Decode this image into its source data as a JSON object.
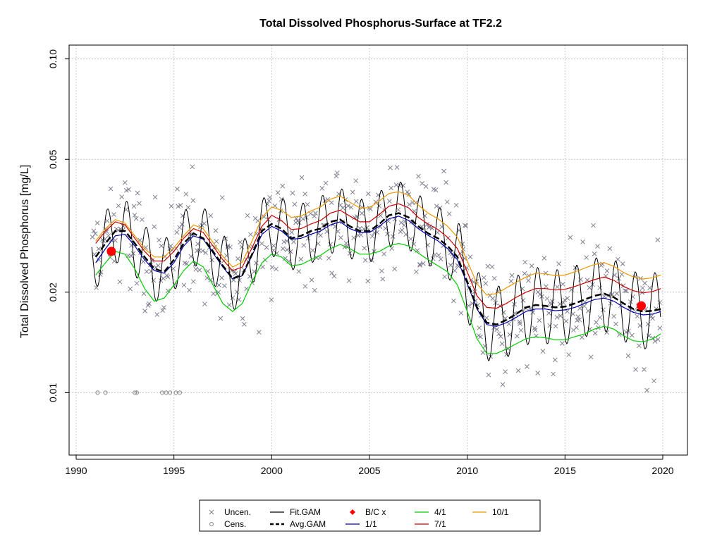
{
  "chart_data": {
    "type": "scatter",
    "title": "Total Dissolved Phosphorus-Surface at TF2.2",
    "xlabel": "",
    "ylabel": "Total Dissolved Phosphorus [mg/L]",
    "y_scale": "log",
    "xlim": [
      1990,
      2020
    ],
    "ylim": [
      0.0065,
      0.11
    ],
    "x_ticks": [
      1990,
      1995,
      2000,
      2005,
      2010,
      2015,
      2020
    ],
    "x_tick_labels": [
      "1990",
      "1995",
      "2000",
      "2005",
      "2010",
      "2015",
      "2020"
    ],
    "y_ticks": [
      0.01,
      0.02,
      0.05,
      0.1
    ],
    "y_tick_labels": [
      "0.01",
      "0.02",
      "0.05",
      "0.10"
    ],
    "grid": true,
    "legend_position": "bottom",
    "legend": [
      {
        "label": "Uncen.",
        "kind": "point",
        "symbol": "x",
        "color": "#7f7f7f"
      },
      {
        "label": "Cens.",
        "kind": "point",
        "symbol": "o",
        "color": "#7f7f7f"
      },
      {
        "label": "Fit.GAM",
        "kind": "line",
        "color": "#000000"
      },
      {
        "label": "Avg.GAM",
        "kind": "dashed",
        "color": "#000000"
      },
      {
        "label": "B/C x",
        "kind": "point",
        "symbol": "dot",
        "color": "#ff0000"
      },
      {
        "label": "1/1",
        "kind": "line",
        "color": "#0000aa"
      },
      {
        "label": "4/1",
        "kind": "line",
        "color": "#00cc00"
      },
      {
        "label": "7/1",
        "kind": "line",
        "color": "#cc0000"
      },
      {
        "label": "10/1",
        "kind": "line",
        "color": "#ee9900"
      }
    ],
    "series": [
      {
        "name": "Avg.GAM",
        "color": "#000000",
        "x": [
          1991.0,
          1991.5,
          1992.0,
          1992.5,
          1993.0,
          1993.5,
          1994.0,
          1994.5,
          1995.0,
          1995.5,
          1996.0,
          1996.5,
          1997.0,
          1997.5,
          1998.0,
          1998.5,
          1999.0,
          1999.5,
          2000.0,
          2000.5,
          2001.0,
          2001.5,
          2002.0,
          2002.5,
          2003.0,
          2003.5,
          2004.0,
          2004.5,
          2005.0,
          2005.5,
          2006.0,
          2006.5,
          2007.0,
          2007.5,
          2008.0,
          2008.5,
          2009.0,
          2009.5,
          2010.0,
          2010.5,
          2011.0,
          2011.5,
          2012.0,
          2012.5,
          2013.0,
          2013.5,
          2014.0,
          2014.5,
          2015.0,
          2015.5,
          2016.0,
          2016.5,
          2017.0,
          2017.5,
          2018.0,
          2018.5,
          2019.0,
          2019.5,
          2019.9
        ],
        "y": [
          0.0255,
          0.028,
          0.0305,
          0.0305,
          0.028,
          0.0255,
          0.0235,
          0.023,
          0.025,
          0.028,
          0.03,
          0.029,
          0.0265,
          0.024,
          0.022,
          0.0225,
          0.026,
          0.0305,
          0.032,
          0.031,
          0.029,
          0.0295,
          0.0305,
          0.031,
          0.0325,
          0.033,
          0.0315,
          0.0305,
          0.0305,
          0.032,
          0.034,
          0.0345,
          0.0335,
          0.0315,
          0.03,
          0.029,
          0.0275,
          0.0255,
          0.0215,
          0.018,
          0.0162,
          0.016,
          0.0165,
          0.0172,
          0.018,
          0.0183,
          0.0182,
          0.018,
          0.0181,
          0.0185,
          0.019,
          0.0195,
          0.0198,
          0.0193,
          0.0185,
          0.0178,
          0.0175,
          0.0176,
          0.0178
        ]
      },
      {
        "name": "1/1",
        "color": "#0000aa",
        "x": [
          1991.0,
          1991.5,
          1992.0,
          1992.5,
          1993.0,
          1993.5,
          1994.0,
          1994.5,
          1995.0,
          1995.5,
          1996.0,
          1996.5,
          1997.0,
          1997.5,
          1998.0,
          1998.5,
          1999.0,
          1999.5,
          2000.0,
          2000.5,
          2001.0,
          2001.5,
          2002.0,
          2002.5,
          2003.0,
          2003.5,
          2004.0,
          2004.5,
          2005.0,
          2005.5,
          2006.0,
          2006.5,
          2007.0,
          2007.5,
          2008.0,
          2008.5,
          2009.0,
          2009.5,
          2010.0,
          2010.5,
          2011.0,
          2011.5,
          2012.0,
          2012.5,
          2013.0,
          2013.5,
          2014.0,
          2014.5,
          2015.0,
          2015.5,
          2016.0,
          2016.5,
          2017.0,
          2017.5,
          2018.0,
          2018.5,
          2019.0,
          2019.5,
          2019.9
        ],
        "y": [
          0.0245,
          0.027,
          0.0295,
          0.0298,
          0.0275,
          0.025,
          0.0232,
          0.0228,
          0.0245,
          0.0275,
          0.0295,
          0.0288,
          0.0262,
          0.0238,
          0.0219,
          0.0224,
          0.0258,
          0.0298,
          0.0315,
          0.0305,
          0.0288,
          0.029,
          0.0298,
          0.0305,
          0.0318,
          0.0325,
          0.031,
          0.0302,
          0.0302,
          0.0315,
          0.0332,
          0.0338,
          0.0328,
          0.031,
          0.0296,
          0.0285,
          0.027,
          0.025,
          0.0212,
          0.0178,
          0.016,
          0.0158,
          0.0162,
          0.0168,
          0.0175,
          0.0178,
          0.0178,
          0.0176,
          0.0177,
          0.018,
          0.0185,
          0.019,
          0.0192,
          0.0188,
          0.018,
          0.0174,
          0.0171,
          0.0172,
          0.0175
        ]
      },
      {
        "name": "4/1",
        "color": "#00cc00",
        "x": [
          1991.0,
          1991.5,
          1992.0,
          1992.5,
          1993.0,
          1993.5,
          1994.0,
          1994.5,
          1995.0,
          1995.5,
          1996.0,
          1996.5,
          1997.0,
          1997.5,
          1998.0,
          1998.5,
          1999.0,
          1999.5,
          2000.0,
          2000.5,
          2001.0,
          2001.5,
          2002.0,
          2002.5,
          2003.0,
          2003.5,
          2004.0,
          2004.5,
          2005.0,
          2005.5,
          2006.0,
          2006.5,
          2007.0,
          2007.5,
          2008.0,
          2008.5,
          2009.0,
          2009.5,
          2010.0,
          2010.5,
          2011.0,
          2011.5,
          2012.0,
          2012.5,
          2013.0,
          2013.5,
          2014.0,
          2014.5,
          2015.0,
          2015.5,
          2016.0,
          2016.5,
          2017.0,
          2017.5,
          2018.0,
          2018.5,
          2019.0,
          2019.5,
          2019.9
        ],
        "y": [
          0.0225,
          0.0245,
          0.0265,
          0.026,
          0.0235,
          0.0205,
          0.0188,
          0.0192,
          0.021,
          0.0232,
          0.0248,
          0.0238,
          0.021,
          0.0185,
          0.0175,
          0.0185,
          0.0215,
          0.0245,
          0.026,
          0.0255,
          0.024,
          0.0242,
          0.025,
          0.0258,
          0.027,
          0.0278,
          0.027,
          0.026,
          0.026,
          0.0265,
          0.0275,
          0.028,
          0.0275,
          0.0262,
          0.025,
          0.024,
          0.023,
          0.021,
          0.0175,
          0.0145,
          0.0131,
          0.0131,
          0.0135,
          0.014,
          0.0145,
          0.0147,
          0.0146,
          0.0144,
          0.0144,
          0.0147,
          0.015,
          0.0155,
          0.0158,
          0.0155,
          0.0148,
          0.0143,
          0.0142,
          0.0145,
          0.015
        ]
      },
      {
        "name": "7/1",
        "color": "#cc0000",
        "x": [
          1991.0,
          1991.5,
          1992.0,
          1992.5,
          1993.0,
          1993.5,
          1994.0,
          1994.5,
          1995.0,
          1995.5,
          1996.0,
          1996.5,
          1997.0,
          1997.5,
          1998.0,
          1998.5,
          1999.0,
          1999.5,
          2000.0,
          2000.5,
          2001.0,
          2001.5,
          2002.0,
          2002.5,
          2003.0,
          2003.5,
          2004.0,
          2004.5,
          2005.0,
          2005.5,
          2006.0,
          2006.5,
          2007.0,
          2007.5,
          2008.0,
          2008.5,
          2009.0,
          2009.5,
          2010.0,
          2010.5,
          2011.0,
          2011.5,
          2012.0,
          2012.5,
          2013.0,
          2013.5,
          2014.0,
          2014.5,
          2015.0,
          2015.5,
          2016.0,
          2016.5,
          2017.0,
          2017.5,
          2018.0,
          2018.5,
          2019.0,
          2019.5,
          2019.9
        ],
        "y": [
          0.028,
          0.0305,
          0.0325,
          0.0318,
          0.029,
          0.0265,
          0.0248,
          0.0248,
          0.0265,
          0.029,
          0.031,
          0.0302,
          0.0275,
          0.025,
          0.0232,
          0.0238,
          0.0272,
          0.0315,
          0.034,
          0.0328,
          0.0308,
          0.031,
          0.032,
          0.0328,
          0.0345,
          0.0352,
          0.0338,
          0.0325,
          0.0325,
          0.0342,
          0.0362,
          0.0368,
          0.0358,
          0.0335,
          0.032,
          0.0308,
          0.0292,
          0.027,
          0.023,
          0.0195,
          0.018,
          0.0179,
          0.0185,
          0.0193,
          0.02,
          0.0205,
          0.0205,
          0.0203,
          0.0204,
          0.0208,
          0.0213,
          0.0218,
          0.0222,
          0.0217,
          0.0208,
          0.0202,
          0.0199,
          0.0201,
          0.0205
        ]
      },
      {
        "name": "10/1",
        "color": "#ee9900",
        "x": [
          1991.0,
          1991.5,
          1992.0,
          1992.5,
          1993.0,
          1993.5,
          1994.0,
          1994.5,
          1995.0,
          1995.5,
          1996.0,
          1996.5,
          1997.0,
          1997.5,
          1998.0,
          1998.5,
          1999.0,
          1999.5,
          2000.0,
          2000.5,
          2001.0,
          2001.5,
          2002.0,
          2002.5,
          2003.0,
          2003.5,
          2004.0,
          2004.5,
          2005.0,
          2005.5,
          2006.0,
          2006.5,
          2007.0,
          2007.5,
          2008.0,
          2008.5,
          2009.0,
          2009.5,
          2010.0,
          2010.5,
          2011.0,
          2011.5,
          2012.0,
          2012.5,
          2013.0,
          2013.5,
          2014.0,
          2014.5,
          2015.0,
          2015.5,
          2016.0,
          2016.5,
          2017.0,
          2017.5,
          2018.0,
          2018.5,
          2019.0,
          2019.5,
          2019.9
        ],
        "y": [
          0.0285,
          0.031,
          0.033,
          0.0322,
          0.0295,
          0.027,
          0.0255,
          0.0255,
          0.0272,
          0.0295,
          0.0318,
          0.031,
          0.0282,
          0.0256,
          0.0238,
          0.0246,
          0.0285,
          0.0335,
          0.036,
          0.0352,
          0.0335,
          0.0338,
          0.035,
          0.036,
          0.038,
          0.0388,
          0.0372,
          0.0358,
          0.0358,
          0.0375,
          0.0395,
          0.04,
          0.039,
          0.0365,
          0.0345,
          0.0332,
          0.0315,
          0.0292,
          0.0248,
          0.0212,
          0.0196,
          0.0198,
          0.0206,
          0.0214,
          0.0222,
          0.0228,
          0.0227,
          0.0224,
          0.0225,
          0.023,
          0.0236,
          0.0242,
          0.0245,
          0.0239,
          0.0229,
          0.0222,
          0.0219,
          0.0221,
          0.0225
        ]
      },
      {
        "name": "B/C x",
        "color": "#ff0000",
        "x": [
          1991.8,
          2018.9
        ],
        "y": [
          0.0265,
          0.0182
        ]
      }
    ],
    "fit_gam": {
      "name": "Fit.GAM",
      "color": "#000000",
      "x_start": 1990.8,
      "x_end": 2019.9,
      "samples_per_year": 24
    },
    "censored": {
      "name": "Cens.",
      "x": [
        1991.1,
        1991.5,
        1993.0,
        1993.1,
        1994.4,
        1994.6,
        1994.8,
        1995.1,
        1995.3
      ],
      "y": [
        0.01,
        0.01,
        0.01,
        0.01,
        0.01,
        0.01,
        0.01,
        0.01,
        0.01
      ]
    },
    "uncensored": {
      "name": "Uncen.",
      "count": 560,
      "x_range": [
        1990.8,
        2019.9
      ]
    }
  }
}
